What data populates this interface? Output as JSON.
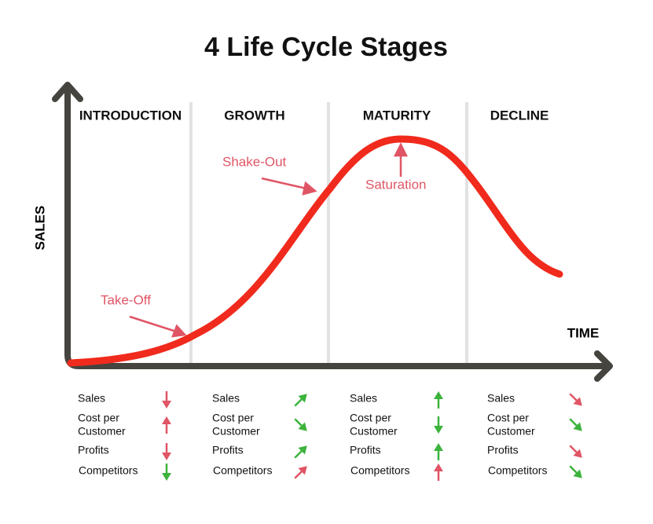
{
  "title": "4 Life Cycle Stages",
  "y_axis_label": "SALES",
  "x_axis_label": "TIME",
  "annotations": [
    {
      "label": "Take-Off"
    },
    {
      "label": "Shake-Out"
    },
    {
      "label": "Saturation"
    }
  ],
  "metrics": [
    {
      "lines": [
        "Sales"
      ]
    },
    {
      "lines": [
        "Cost per",
        "Customer"
      ]
    },
    {
      "lines": [
        "Profits"
      ]
    },
    {
      "lines": [
        "Competitors"
      ]
    }
  ],
  "stages": [
    {
      "name": "INTRODUCTION",
      "trends": [
        {
          "direction": "down",
          "color": "#e05565"
        },
        {
          "direction": "up",
          "color": "#e05565"
        },
        {
          "direction": "down",
          "color": "#e05565"
        },
        {
          "direction": "down",
          "color": "#3db33d"
        }
      ]
    },
    {
      "name": "GROWTH",
      "trends": [
        {
          "direction": "up-right",
          "color": "#3db33d"
        },
        {
          "direction": "down-right",
          "color": "#3db33d"
        },
        {
          "direction": "up-right",
          "color": "#3db33d"
        },
        {
          "direction": "up-right",
          "color": "#e05565"
        }
      ]
    },
    {
      "name": "MATURITY",
      "trends": [
        {
          "direction": "up",
          "color": "#3db33d"
        },
        {
          "direction": "down",
          "color": "#3db33d"
        },
        {
          "direction": "up",
          "color": "#3db33d"
        },
        {
          "direction": "up",
          "color": "#e05565"
        }
      ]
    },
    {
      "name": "DECLINE",
      "trends": [
        {
          "direction": "down-right",
          "color": "#e05565"
        },
        {
          "direction": "down-right",
          "color": "#3db33d"
        },
        {
          "direction": "down-right",
          "color": "#e05565"
        },
        {
          "direction": "down-right",
          "color": "#3db33d"
        }
      ]
    }
  ]
}
